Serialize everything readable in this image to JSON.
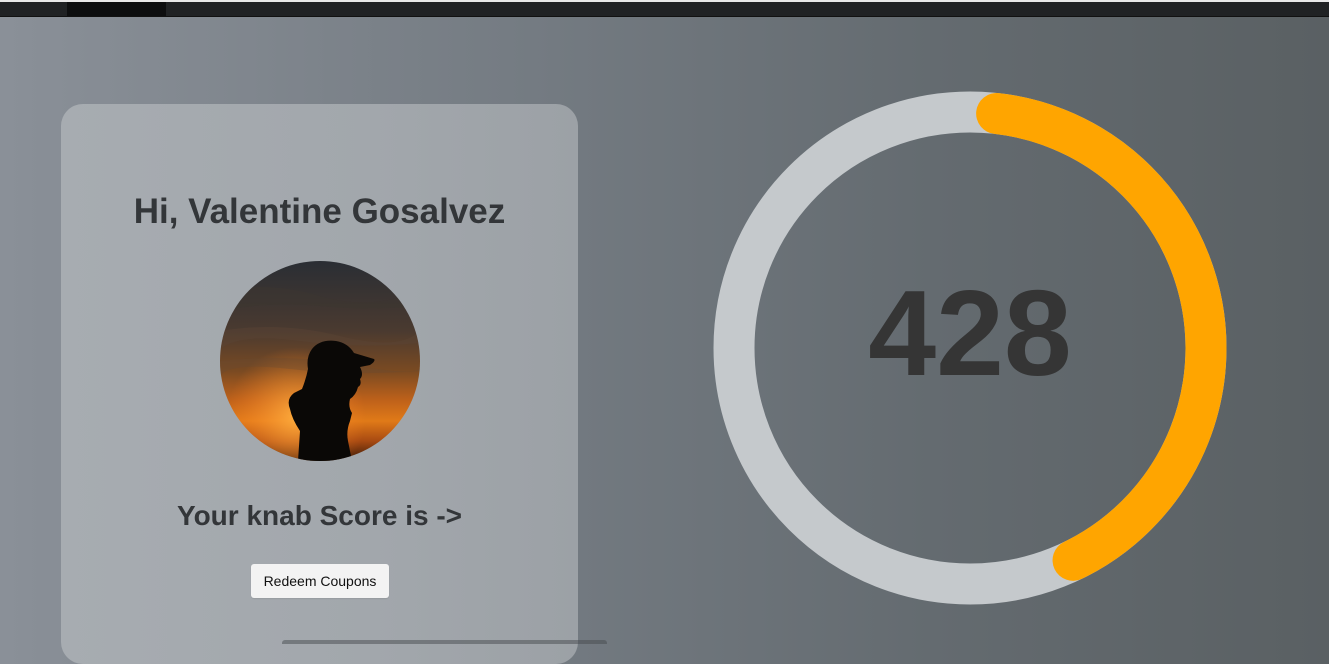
{
  "greeting": "Hi, Valentine Gosalvez",
  "score_label": "Your knab Score is ->",
  "redeem_label": "Redeem Coupons",
  "score": {
    "value": "428",
    "progress_fraction": 0.41,
    "track_color": "#c5c9cc",
    "fill_color": "#ffa500"
  },
  "avatar": {
    "description_icon": "silhouette-sunset-photo"
  }
}
